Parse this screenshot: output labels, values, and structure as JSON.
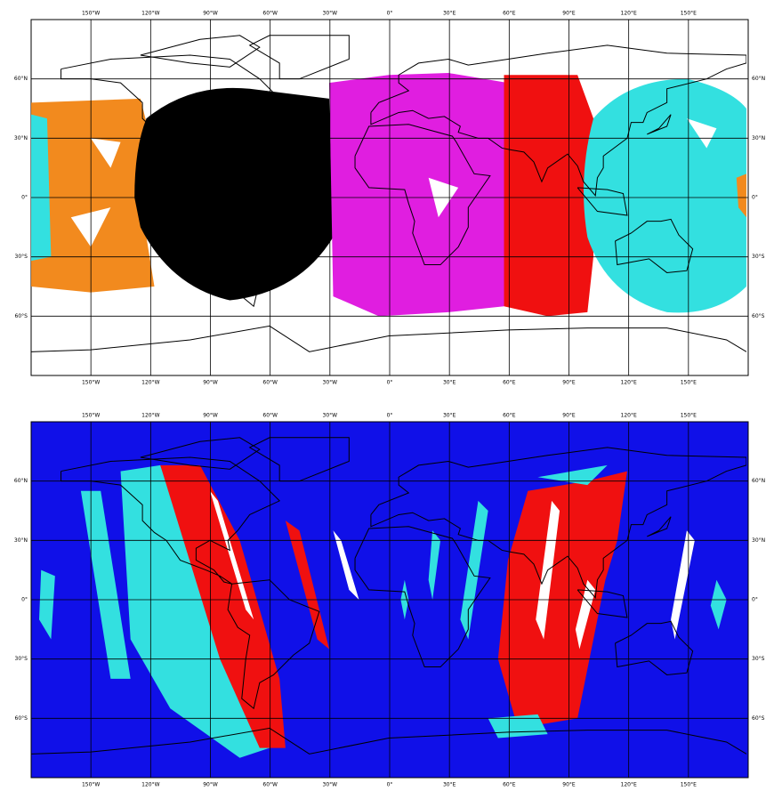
{
  "longitude_labels": [
    "150°W",
    "120°W",
    "90°W",
    "60°W",
    "30°W",
    "0°",
    "30°E",
    "60°E",
    "90°E",
    "120°E",
    "150°E"
  ],
  "latitude_labels": [
    "60°N",
    "30°N",
    "0°",
    "30°S",
    "60°S"
  ]
}
